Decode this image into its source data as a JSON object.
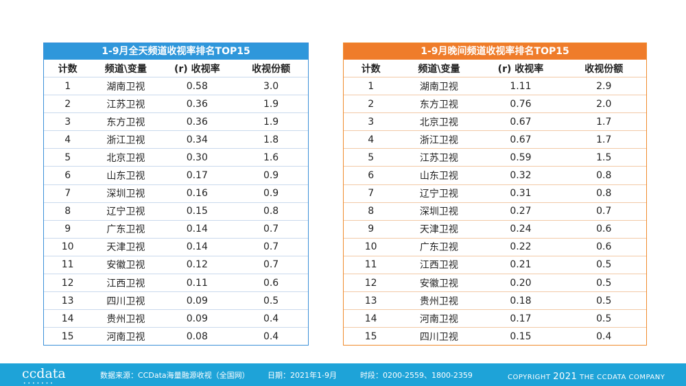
{
  "left_table": {
    "title": "1-9月全天频道收视率排名TOP15",
    "headers": [
      "计数",
      "频道\\变量",
      "(r) 收视率",
      "收视份额"
    ],
    "rows": [
      [
        "1",
        "湖南卫视",
        "0.58",
        "3.0"
      ],
      [
        "2",
        "江苏卫视",
        "0.36",
        "1.9"
      ],
      [
        "3",
        "东方卫视",
        "0.36",
        "1.9"
      ],
      [
        "4",
        "浙江卫视",
        "0.34",
        "1.8"
      ],
      [
        "5",
        "北京卫视",
        "0.30",
        "1.6"
      ],
      [
        "6",
        "山东卫视",
        "0.17",
        "0.9"
      ],
      [
        "7",
        "深圳卫视",
        "0.16",
        "0.9"
      ],
      [
        "8",
        "辽宁卫视",
        "0.15",
        "0.8"
      ],
      [
        "9",
        "广东卫视",
        "0.14",
        "0.7"
      ],
      [
        "10",
        "天津卫视",
        "0.14",
        "0.7"
      ],
      [
        "11",
        "安徽卫视",
        "0.12",
        "0.7"
      ],
      [
        "12",
        "江西卫视",
        "0.11",
        "0.6"
      ],
      [
        "13",
        "四川卫视",
        "0.09",
        "0.5"
      ],
      [
        "14",
        "贵州卫视",
        "0.09",
        "0.4"
      ],
      [
        "15",
        "河南卫视",
        "0.08",
        "0.4"
      ]
    ]
  },
  "right_table": {
    "title": "1-9月晚间频道收视率排名TOP15",
    "headers": [
      "计数",
      "频道\\变量",
      "(r) 收视率",
      "收视份额"
    ],
    "rows": [
      [
        "1",
        "湖南卫视",
        "1.11",
        "2.9"
      ],
      [
        "2",
        "东方卫视",
        "0.76",
        "2.0"
      ],
      [
        "3",
        "北京卫视",
        "0.67",
        "1.7"
      ],
      [
        "4",
        "浙江卫视",
        "0.67",
        "1.7"
      ],
      [
        "5",
        "江苏卫视",
        "0.59",
        "1.5"
      ],
      [
        "6",
        "山东卫视",
        "0.32",
        "0.8"
      ],
      [
        "7",
        "辽宁卫视",
        "0.31",
        "0.8"
      ],
      [
        "8",
        "深圳卫视",
        "0.27",
        "0.7"
      ],
      [
        "9",
        "天津卫视",
        "0.24",
        "0.6"
      ],
      [
        "10",
        "广东卫视",
        "0.22",
        "0.6"
      ],
      [
        "11",
        "江西卫视",
        "0.21",
        "0.5"
      ],
      [
        "12",
        "安徽卫视",
        "0.20",
        "0.5"
      ],
      [
        "13",
        "贵州卫视",
        "0.18",
        "0.5"
      ],
      [
        "14",
        "河南卫视",
        "0.17",
        "0.5"
      ],
      [
        "15",
        "四川卫视",
        "0.15",
        "0.4"
      ]
    ]
  },
  "footer": {
    "logo": "ccdata",
    "logo_dots": "•••••••",
    "source": "数据来源：CCData海量融源收视（全国网）",
    "date": "日期：2021年1-9月",
    "period": "时段：0200-2559、1800-2359",
    "copyright_prefix": "COPYRIGHT",
    "copyright_year": "2021",
    "copyright_suffix": "THE CCDATA COMPANY"
  },
  "colors": {
    "left_accent": "#2f97db",
    "right_accent": "#ef7c2a",
    "footer_bg": "#1ea3d8"
  }
}
